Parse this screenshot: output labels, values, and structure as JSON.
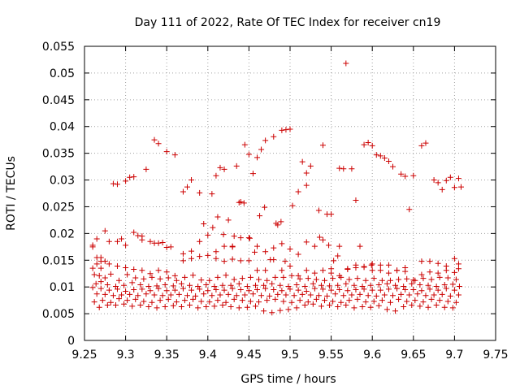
{
  "chart_data": {
    "type": "scatter",
    "title": "Day 111 of 2022, Rate Of TEC Index for receiver cn19",
    "xlabel": "GPS time / hours",
    "ylabel": "ROTI / TECUs",
    "xlim": [
      9.25,
      9.75
    ],
    "ylim": [
      0,
      0.055
    ],
    "xticks": [
      "9.25",
      "9.3",
      "9.35",
      "9.4",
      "9.45",
      "9.5",
      "9.55",
      "9.6",
      "9.65",
      "9.7",
      "9.75"
    ],
    "yticks": [
      "0",
      "0.005",
      "0.01",
      "0.015",
      "0.02",
      "0.025",
      "0.03",
      "0.035",
      "0.04",
      "0.045",
      "0.05",
      "0.055"
    ],
    "grid": true,
    "marker": "+",
    "color": "#cc0000",
    "series": [
      {
        "name": "ROTI",
        "x": [
          9.26,
          9.265,
          9.27,
          9.275,
          9.285,
          9.29,
          9.295,
          9.3,
          9.305,
          9.31,
          9.32,
          9.325,
          9.335,
          9.34,
          9.345,
          9.35,
          9.36,
          9.37,
          9.375,
          9.38,
          9.39,
          9.395,
          9.405,
          9.41,
          9.415,
          9.42,
          9.43,
          9.435,
          9.44,
          9.445,
          9.45,
          9.455,
          9.46,
          9.465,
          9.47,
          9.48,
          9.485,
          9.49,
          9.495,
          9.5,
          9.51,
          9.515,
          9.52,
          9.525,
          9.535,
          9.54,
          9.545,
          9.55,
          9.56,
          9.565,
          9.575,
          9.58,
          9.59,
          9.595,
          9.6,
          9.605,
          9.61,
          9.615,
          9.62,
          9.625,
          9.635,
          9.64,
          9.645,
          9.65,
          9.66,
          9.665,
          9.675,
          9.68,
          9.685,
          9.69,
          9.695,
          9.7,
          9.705,
          9.708,
          9.26,
          9.265,
          9.27,
          9.275,
          9.28,
          9.29,
          9.3,
          9.31,
          9.315,
          9.32,
          9.33,
          9.335,
          9.34,
          9.35,
          9.355,
          9.37,
          9.38,
          9.39,
          9.4,
          9.41,
          9.42,
          9.43,
          9.44,
          9.45,
          9.46,
          9.47,
          9.48,
          9.49,
          9.5,
          9.51,
          9.52,
          9.53,
          9.55,
          9.56,
          9.57,
          9.58,
          9.59,
          9.6,
          9.61,
          9.62,
          9.63,
          9.64,
          9.66,
          9.67,
          9.68,
          9.69,
          9.7,
          9.705,
          9.26,
          9.265,
          9.27,
          9.28,
          9.29,
          9.3,
          9.31,
          9.32,
          9.33,
          9.34,
          9.35,
          9.36,
          9.37,
          9.38,
          9.39,
          9.4,
          9.41,
          9.42,
          9.43,
          9.44,
          9.45,
          9.46,
          9.47,
          9.48,
          9.49,
          9.5,
          9.51,
          9.52,
          9.53,
          9.54,
          9.55,
          9.56,
          9.57,
          9.58,
          9.59,
          9.6,
          9.61,
          9.62,
          9.63,
          9.64,
          9.65,
          9.66,
          9.67,
          9.68,
          9.69,
          9.7,
          9.705,
          9.262,
          9.268,
          9.275,
          9.282,
          9.292,
          9.302,
          9.312,
          9.322,
          9.332,
          9.342,
          9.352,
          9.362,
          9.372,
          9.382,
          9.392,
          9.402,
          9.412,
          9.422,
          9.432,
          9.442,
          9.452,
          9.462,
          9.472,
          9.482,
          9.492,
          9.502,
          9.512,
          9.522,
          9.532,
          9.542,
          9.552,
          9.562,
          9.572,
          9.582,
          9.592,
          9.602,
          9.612,
          9.622,
          9.632,
          9.642,
          9.652,
          9.662,
          9.672,
          9.682,
          9.692,
          9.702,
          9.264,
          9.27,
          9.278,
          9.288,
          9.298,
          9.308,
          9.318,
          9.328,
          9.338,
          9.348,
          9.358,
          9.368,
          9.378,
          9.388,
          9.398,
          9.408,
          9.418,
          9.428,
          9.438,
          9.448,
          9.458,
          9.468,
          9.478,
          9.488,
          9.498,
          9.508,
          9.518,
          9.528,
          9.538,
          9.548,
          9.558,
          9.568,
          9.578,
          9.588,
          9.598,
          9.608,
          9.618,
          9.628,
          9.638,
          9.648,
          9.658,
          9.668,
          9.678,
          9.688,
          9.698,
          9.706,
          9.26,
          9.27,
          9.28,
          9.29,
          9.3,
          9.31,
          9.32,
          9.33,
          9.34,
          9.35,
          9.36,
          9.37,
          9.38,
          9.39,
          9.4,
          9.41,
          9.42,
          9.43,
          9.44,
          9.45,
          9.46,
          9.47,
          9.48,
          9.49,
          9.5,
          9.51,
          9.52,
          9.53,
          9.54,
          9.55,
          9.56,
          9.57,
          9.58,
          9.59,
          9.6,
          9.61,
          9.62,
          9.63,
          9.64,
          9.65,
          9.66,
          9.67,
          9.68,
          9.69,
          9.7,
          9.265,
          9.275,
          9.285,
          9.295,
          9.305,
          9.315,
          9.325,
          9.335,
          9.345,
          9.355,
          9.365,
          9.375,
          9.385,
          9.395,
          9.405,
          9.415,
          9.425,
          9.435,
          9.445,
          9.455,
          9.465,
          9.475,
          9.485,
          9.495,
          9.505,
          9.515,
          9.525,
          9.535,
          9.545,
          9.555,
          9.565,
          9.575,
          9.585,
          9.595,
          9.605,
          9.615,
          9.625,
          9.635,
          9.645,
          9.655,
          9.665,
          9.675,
          9.685,
          9.695,
          9.705,
          9.262,
          9.272,
          9.282,
          9.292,
          9.302,
          9.312,
          9.322,
          9.332,
          9.342,
          9.352,
          9.362,
          9.372,
          9.382,
          9.392,
          9.402,
          9.412,
          9.422,
          9.432,
          9.442,
          9.452,
          9.462,
          9.472,
          9.482,
          9.492,
          9.502,
          9.512,
          9.522,
          9.532,
          9.542,
          9.552,
          9.562,
          9.572,
          9.582,
          9.592,
          9.602,
          9.612,
          9.622,
          9.632,
          9.642,
          9.652,
          9.662,
          9.672,
          9.682,
          9.692,
          9.702,
          9.268,
          9.278,
          9.288,
          9.298,
          9.308,
          9.318,
          9.328,
          9.338,
          9.348,
          9.358,
          9.368,
          9.378,
          9.388,
          9.398,
          9.408,
          9.418,
          9.428,
          9.438,
          9.448,
          9.458,
          9.468,
          9.478,
          9.488,
          9.498,
          9.508,
          9.518,
          9.528,
          9.538,
          9.548,
          9.558,
          9.568,
          9.578,
          9.588,
          9.598,
          9.608,
          9.618,
          9.628,
          9.638,
          9.648,
          9.658,
          9.668,
          9.678,
          9.688,
          9.698,
          9.406,
          9.412,
          9.419,
          9.425,
          9.432,
          9.438,
          9.444,
          9.451,
          9.457,
          9.463,
          9.469,
          9.476,
          9.483,
          9.489,
          9.494,
          9.503,
          9.52,
          9.536,
          9.54,
          9.547,
          9.553,
          9.558,
          9.585,
          9.599,
          9.568
        ],
        "y": [
          0.0178,
          0.019,
          0.0155,
          0.0205,
          0.0293,
          0.0292,
          0.019,
          0.0298,
          0.0305,
          0.0306,
          0.0188,
          0.032,
          0.0375,
          0.0368,
          0.0183,
          0.0353,
          0.0347,
          0.0278,
          0.0287,
          0.03,
          0.0276,
          0.0218,
          0.0274,
          0.0308,
          0.0323,
          0.032,
          0.0175,
          0.0326,
          0.0259,
          0.0366,
          0.0348,
          0.0312,
          0.0342,
          0.0357,
          0.0374,
          0.0381,
          0.0216,
          0.0393,
          0.0394,
          0.0395,
          0.0278,
          0.0334,
          0.029,
          0.0326,
          0.0243,
          0.0365,
          0.0236,
          0.0236,
          0.0322,
          0.0321,
          0.0321,
          0.0262,
          0.0366,
          0.037,
          0.0364,
          0.0347,
          0.0345,
          0.0341,
          0.0335,
          0.0325,
          0.0311,
          0.0307,
          0.0245,
          0.0308,
          0.0364,
          0.0369,
          0.03,
          0.0295,
          0.0282,
          0.0299,
          0.0305,
          0.0286,
          0.0303,
          0.0287,
          0.0175,
          0.0155,
          0.0148,
          0.0148,
          0.0185,
          0.0185,
          0.0178,
          0.0202,
          0.0196,
          0.0195,
          0.0185,
          0.0182,
          0.0182,
          0.0174,
          0.0175,
          0.0162,
          0.0167,
          0.0185,
          0.0197,
          0.0166,
          0.0176,
          0.0176,
          0.0192,
          0.0192,
          0.0176,
          0.0166,
          0.0173,
          0.0181,
          0.0171,
          0.0161,
          0.0184,
          0.0176,
          0.0134,
          0.0176,
          0.0134,
          0.0141,
          0.0138,
          0.0143,
          0.0141,
          0.0141,
          0.0131,
          0.0136,
          0.0148,
          0.0148,
          0.0144,
          0.0139,
          0.0153,
          0.0134,
          0.0135,
          0.0143,
          0.0135,
          0.0143,
          0.0139,
          0.0136,
          0.0133,
          0.0131,
          0.0125,
          0.0131,
          0.0128,
          0.0121,
          0.0149,
          0.0153,
          0.0157,
          0.0159,
          0.0153,
          0.0148,
          0.0152,
          0.0149,
          0.0149,
          0.0131,
          0.0131,
          0.0151,
          0.0131,
          0.0139,
          0.0121,
          0.0131,
          0.0126,
          0.0131,
          0.0126,
          0.0121,
          0.0133,
          0.0136,
          0.0137,
          0.0131,
          0.0131,
          0.0126,
          0.0131,
          0.0129,
          0.0113,
          0.0123,
          0.0128,
          0.0126,
          0.0131,
          0.0127,
          0.0143,
          0.0123,
          0.0121,
          0.0117,
          0.0124,
          0.0112,
          0.0123,
          0.0117,
          0.0115,
          0.0118,
          0.0115,
          0.0117,
          0.0112,
          0.0118,
          0.0122,
          0.0113,
          0.0112,
          0.0118,
          0.0122,
          0.0114,
          0.0116,
          0.0118,
          0.0114,
          0.0112,
          0.0118,
          0.0118,
          0.0121,
          0.0115,
          0.0116,
          0.0114,
          0.0112,
          0.0116,
          0.0118,
          0.0114,
          0.0116,
          0.0112,
          0.0116,
          0.0112,
          0.0112,
          0.0114,
          0.0115,
          0.0112,
          0.0116,
          0.0114,
          0.0118,
          0.0117,
          0.0114,
          0.0106,
          0.011,
          0.0104,
          0.0101,
          0.0103,
          0.0108,
          0.0104,
          0.0101,
          0.0102,
          0.0104,
          0.0102,
          0.0106,
          0.0103,
          0.0101,
          0.0104,
          0.0101,
          0.0103,
          0.0103,
          0.0106,
          0.0101,
          0.0103,
          0.0103,
          0.0106,
          0.0103,
          0.0101,
          0.0104,
          0.0101,
          0.0106,
          0.0103,
          0.0102,
          0.0103,
          0.0106,
          0.0103,
          0.0101,
          0.0103,
          0.0104,
          0.0106,
          0.0103,
          0.0101,
          0.0106,
          0.0104,
          0.0103,
          0.0101,
          0.0104,
          0.0105,
          0.0101,
          0.0099,
          0.0097,
          0.0094,
          0.0096,
          0.0092,
          0.0095,
          0.0096,
          0.0093,
          0.0097,
          0.0093,
          0.0094,
          0.0097,
          0.0094,
          0.0096,
          0.0093,
          0.0095,
          0.0094,
          0.0097,
          0.0095,
          0.0093,
          0.0095,
          0.0097,
          0.0095,
          0.0093,
          0.0096,
          0.0094,
          0.0092,
          0.0097,
          0.0096,
          0.0094,
          0.0095,
          0.0093,
          0.0095,
          0.0096,
          0.0094,
          0.0094,
          0.0096,
          0.0097,
          0.0095,
          0.0095,
          0.0093,
          0.0096,
          0.0094,
          0.0097,
          0.0094,
          0.0087,
          0.0086,
          0.0084,
          0.0085,
          0.0086,
          0.0084,
          0.0087,
          0.0085,
          0.0084,
          0.0085,
          0.0086,
          0.0084,
          0.0083,
          0.0087,
          0.0084,
          0.0085,
          0.0086,
          0.0084,
          0.0085,
          0.0087,
          0.0084,
          0.0083,
          0.0086,
          0.0085,
          0.0084,
          0.0086,
          0.0085,
          0.0084,
          0.0083,
          0.0087,
          0.0084,
          0.0085,
          0.0086,
          0.0084,
          0.0083,
          0.0085,
          0.0084,
          0.0086,
          0.0085,
          0.0087,
          0.0084,
          0.0085,
          0.0086,
          0.0083,
          0.0085,
          0.0072,
          0.0075,
          0.0071,
          0.0078,
          0.0075,
          0.0077,
          0.0073,
          0.0071,
          0.0075,
          0.0077,
          0.0072,
          0.0075,
          0.0077,
          0.0073,
          0.0072,
          0.0075,
          0.0071,
          0.0077,
          0.0075,
          0.0073,
          0.0072,
          0.0075,
          0.0077,
          0.0073,
          0.0071,
          0.0075,
          0.0072,
          0.0077,
          0.0075,
          0.0073,
          0.0071,
          0.0075,
          0.0077,
          0.0072,
          0.0073,
          0.0075,
          0.0071,
          0.0077,
          0.0073,
          0.0075,
          0.0072,
          0.0077,
          0.0075,
          0.0073,
          0.0071,
          0.0062,
          0.0066,
          0.0066,
          0.0068,
          0.0064,
          0.0066,
          0.0063,
          0.0061,
          0.0063,
          0.0065,
          0.0063,
          0.0066,
          0.0061,
          0.0063,
          0.0064,
          0.0066,
          0.0063,
          0.0061,
          0.0062,
          0.0064,
          0.0055,
          0.0052,
          0.0056,
          0.0058,
          0.0061,
          0.0066,
          0.0068,
          0.0064,
          0.0066,
          0.0063,
          0.0066,
          0.0061,
          0.0063,
          0.0062,
          0.0065,
          0.0058,
          0.0055,
          0.0063,
          0.0066,
          0.0064,
          0.0062,
          0.0066,
          0.0062,
          0.0061,
          0.0211,
          0.0231,
          0.0198,
          0.0225,
          0.0195,
          0.0258,
          0.0257,
          0.0191,
          0.0165,
          0.0233,
          0.0249,
          0.0151,
          0.0219,
          0.0222,
          0.0148,
          0.0252,
          0.0313,
          0.0193,
          0.0188,
          0.0178,
          0.0149,
          0.0158,
          0.0176,
          0.0141,
          0.0518
        ]
      }
    ]
  }
}
